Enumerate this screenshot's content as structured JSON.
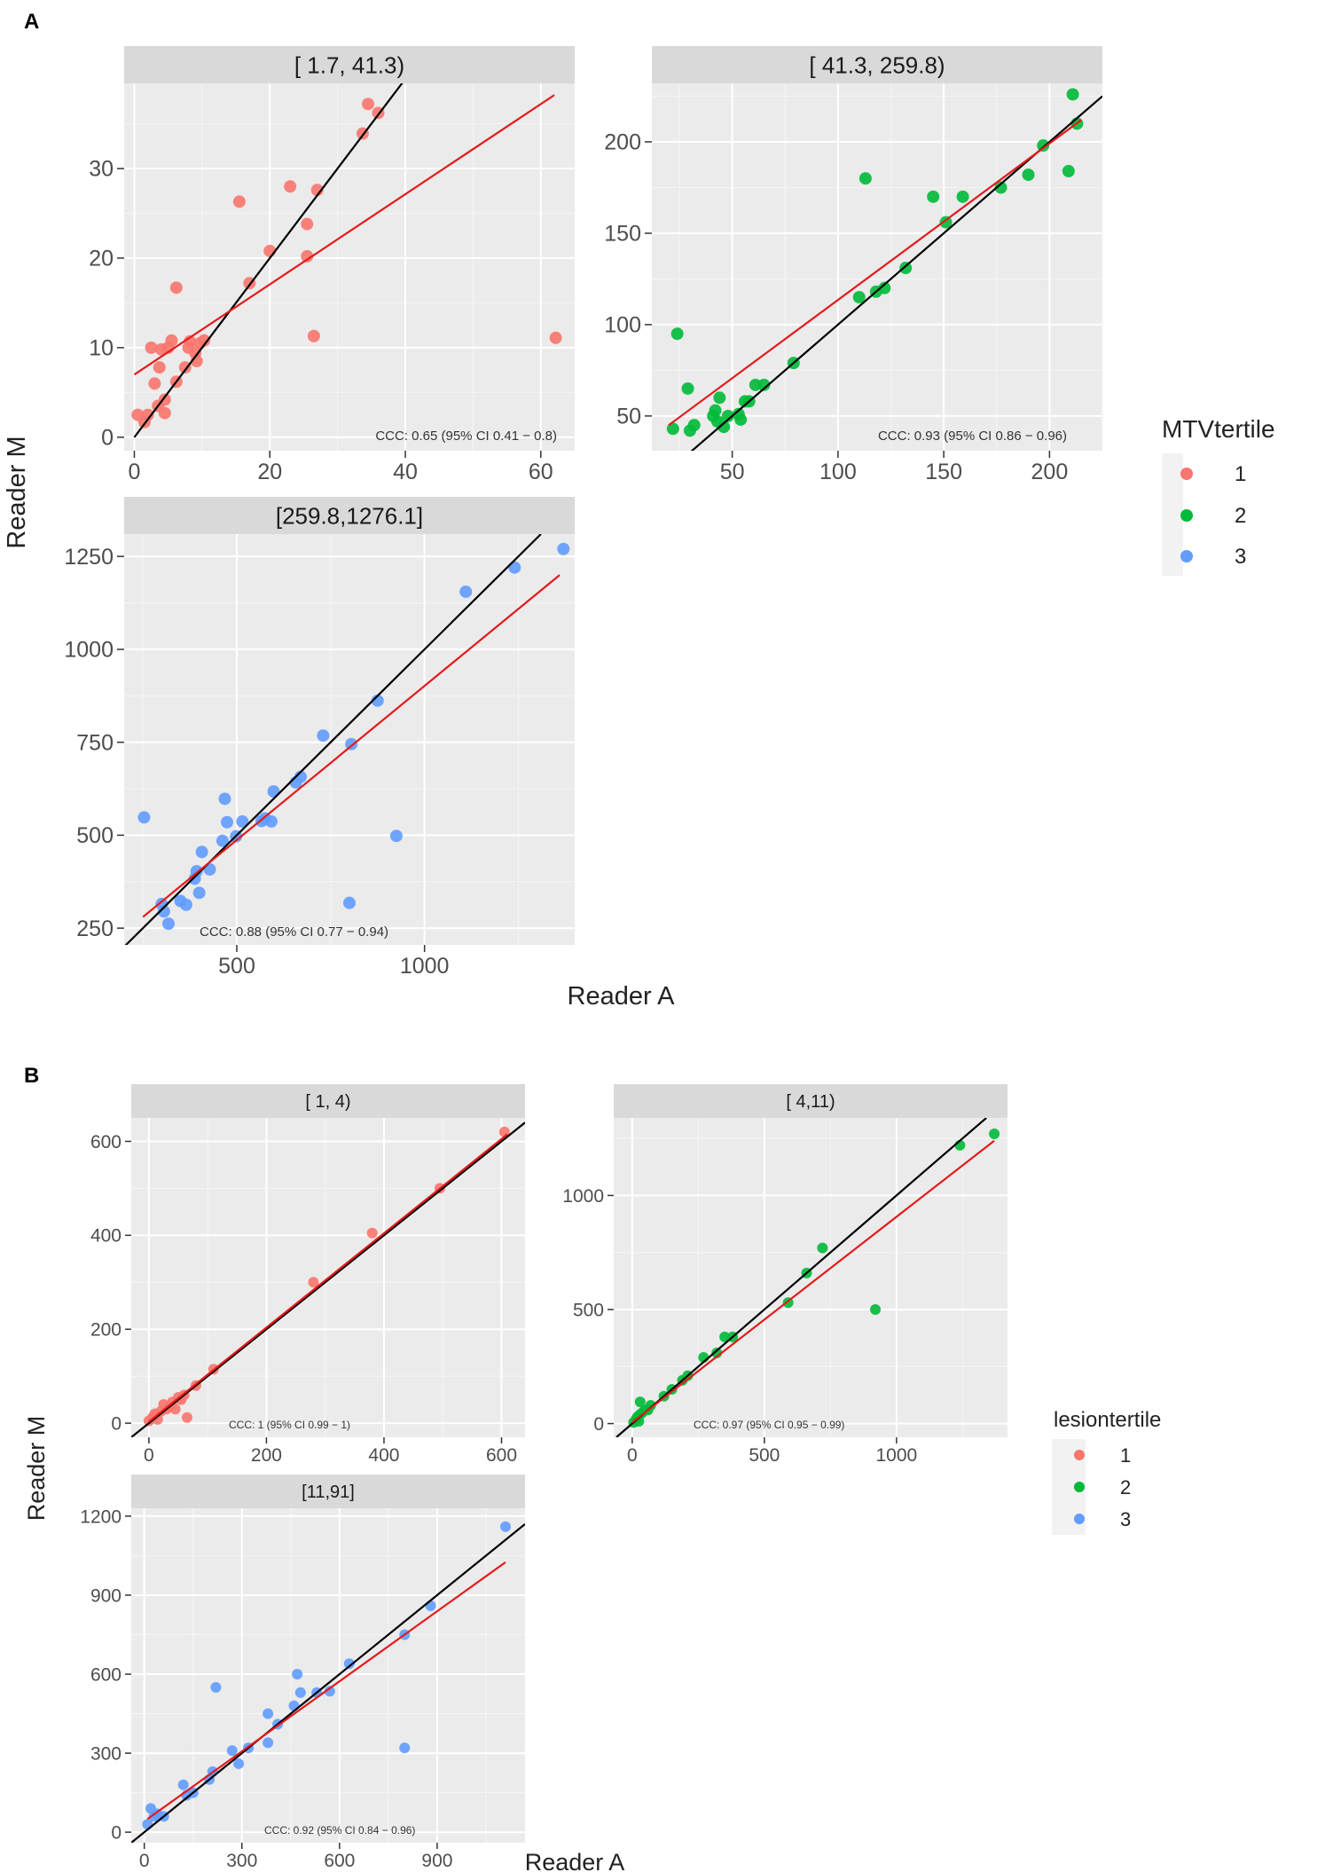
{
  "figures": [
    {
      "id": "A",
      "label": "A",
      "xlabel": "Reader A",
      "ylabel": "Reader M",
      "legend": {
        "title": "MTVtertile",
        "items": [
          {
            "label": "1",
            "color": "#f8766d"
          },
          {
            "label": "2",
            "color": "#00ba38"
          },
          {
            "label": "3",
            "color": "#619cff"
          }
        ]
      }
    },
    {
      "id": "B",
      "label": "B",
      "xlabel": "Reader A",
      "ylabel": "Reader M",
      "legend": {
        "title": "lesiontertile",
        "items": [
          {
            "label": "1",
            "color": "#f8766d"
          },
          {
            "label": "2",
            "color": "#00ba38"
          },
          {
            "label": "3",
            "color": "#619cff"
          }
        ]
      }
    }
  ],
  "chart_data": [
    {
      "type": "scatter",
      "figure": "A",
      "title": "[  1.7,  41.3)",
      "xlabel": "Reader A",
      "ylabel": "Reader M",
      "xlim": [
        -1.5,
        65
      ],
      "ylim": [
        -1.5,
        39.5
      ],
      "xticks": [
        "0",
        "20",
        "40",
        "60"
      ],
      "xtick_values": [
        0,
        20,
        40,
        60
      ],
      "yticks": [
        "0",
        "10",
        "20",
        "30"
      ],
      "ytick_values": [
        0,
        10,
        20,
        30
      ],
      "color": "#f8766d",
      "points": [
        [
          0.5,
          2.5
        ],
        [
          1.5,
          1.7
        ],
        [
          2,
          2.5
        ],
        [
          2.5,
          10
        ],
        [
          3,
          6
        ],
        [
          3.5,
          3.5
        ],
        [
          3.7,
          7.8
        ],
        [
          4,
          9.8
        ],
        [
          4.5,
          4.2
        ],
        [
          4.5,
          2.7
        ],
        [
          5,
          10
        ],
        [
          5.5,
          10.8
        ],
        [
          6.2,
          16.7
        ],
        [
          6.2,
          6.2
        ],
        [
          7.5,
          7.8
        ],
        [
          8,
          10
        ],
        [
          8.2,
          10.7
        ],
        [
          9,
          9.4
        ],
        [
          9.2,
          8.5
        ],
        [
          9.7,
          10.5
        ],
        [
          10.3,
          10.8
        ],
        [
          15.5,
          26.3
        ],
        [
          17,
          17.2
        ],
        [
          20,
          20.8
        ],
        [
          23,
          28
        ],
        [
          25.5,
          23.8
        ],
        [
          25.5,
          20.2
        ],
        [
          26.5,
          11.3
        ],
        [
          27,
          27.6
        ],
        [
          33.7,
          33.9
        ],
        [
          34.5,
          37.2
        ],
        [
          36,
          36.2
        ],
        [
          62.2,
          11.1
        ]
      ],
      "lines": [
        {
          "name": "identity",
          "color": "#000000",
          "x1": 0,
          "y1": 0,
          "x2": 40,
          "y2": 40
        },
        {
          "name": "fit",
          "color": "#e41a1c",
          "x1": 0,
          "y1": 7,
          "x2": 62,
          "y2": 38.2
        }
      ],
      "annotation": "CCC: 0.65 (95% CI 0.41 − 0.8)"
    },
    {
      "type": "scatter",
      "figure": "A",
      "title": "[ 41.3, 259.8)",
      "xlabel": "Reader A",
      "ylabel": "Reader M",
      "xlim": [
        12,
        225
      ],
      "ylim": [
        31,
        232
      ],
      "xticks": [
        "50",
        "100",
        "150",
        "200"
      ],
      "xtick_values": [
        50,
        100,
        150,
        200
      ],
      "yticks": [
        "50",
        "100",
        "150",
        "200"
      ],
      "ytick_values": [
        50,
        100,
        150,
        200
      ],
      "color": "#00ba38",
      "points": [
        [
          22,
          43
        ],
        [
          24,
          95
        ],
        [
          29,
          65
        ],
        [
          30,
          42
        ],
        [
          32,
          45
        ],
        [
          41,
          50
        ],
        [
          42,
          53
        ],
        [
          43,
          47
        ],
        [
          44,
          60
        ],
        [
          46,
          44
        ],
        [
          48,
          50
        ],
        [
          53,
          51
        ],
        [
          54,
          48
        ],
        [
          56,
          58
        ],
        [
          58,
          58
        ],
        [
          61,
          67
        ],
        [
          65,
          67
        ],
        [
          79,
          79
        ],
        [
          110,
          115
        ],
        [
          113,
          180
        ],
        [
          118,
          118
        ],
        [
          122,
          120
        ],
        [
          132,
          131
        ],
        [
          145,
          170
        ],
        [
          151,
          156
        ],
        [
          159,
          170
        ],
        [
          177,
          175
        ],
        [
          190,
          182
        ],
        [
          197,
          198
        ],
        [
          209,
          184
        ],
        [
          211,
          226
        ],
        [
          213,
          210
        ]
      ],
      "lines": [
        {
          "name": "identity",
          "color": "#000000",
          "x1": 12,
          "y1": 12,
          "x2": 225,
          "y2": 225
        },
        {
          "name": "fit",
          "color": "#e41a1c",
          "x1": 20,
          "y1": 45,
          "x2": 215,
          "y2": 212
        }
      ],
      "annotation": "CCC: 0.93 (95% CI 0.86 − 0.96)"
    },
    {
      "type": "scatter",
      "figure": "A",
      "title": "[259.8,1276.1]",
      "xlabel": "Reader A",
      "ylabel": "Reader M",
      "xlim": [
        200,
        1400
      ],
      "ylim": [
        205,
        1310
      ],
      "xticks": [
        "500",
        "1000"
      ],
      "xtick_values": [
        500,
        1000
      ],
      "yticks": [
        "250",
        "500",
        "750",
        "1000",
        "1250"
      ],
      "ytick_values": [
        250,
        500,
        750,
        1000,
        1250
      ],
      "color": "#619cff",
      "points": [
        [
          253,
          548
        ],
        [
          300,
          315
        ],
        [
          306,
          295
        ],
        [
          318,
          262
        ],
        [
          350,
          323
        ],
        [
          365,
          313
        ],
        [
          388,
          383
        ],
        [
          393,
          403
        ],
        [
          400,
          345
        ],
        [
          407,
          455
        ],
        [
          428,
          408
        ],
        [
          462,
          485
        ],
        [
          468,
          598
        ],
        [
          474,
          535
        ],
        [
          498,
          497
        ],
        [
          515,
          537
        ],
        [
          566,
          538
        ],
        [
          575,
          545
        ],
        [
          592,
          537
        ],
        [
          598,
          618
        ],
        [
          657,
          642
        ],
        [
          670,
          657
        ],
        [
          730,
          768
        ],
        [
          800,
          318
        ],
        [
          805,
          745
        ],
        [
          875,
          862
        ],
        [
          925,
          498
        ],
        [
          1110,
          1155
        ],
        [
          1240,
          1220
        ],
        [
          1370,
          1270
        ]
      ],
      "lines": [
        {
          "name": "identity",
          "color": "#000000",
          "x1": 200,
          "y1": 200,
          "x2": 1310,
          "y2": 1310
        },
        {
          "name": "fit",
          "color": "#e41a1c",
          "x1": 250,
          "y1": 280,
          "x2": 1360,
          "y2": 1200
        }
      ],
      "annotation": "CCC: 0.88 (95% CI 0.77 − 0.94)"
    },
    {
      "type": "scatter",
      "figure": "B",
      "title": "[ 1, 4)",
      "xlabel": "Reader A",
      "ylabel": "Reader M",
      "xlim": [
        -30,
        640
      ],
      "ylim": [
        -30,
        650
      ],
      "xticks": [
        "0",
        "200",
        "400",
        "600"
      ],
      "xtick_values": [
        0,
        200,
        400,
        600
      ],
      "yticks": [
        "0",
        "200",
        "400",
        "600"
      ],
      "ytick_values": [
        0,
        200,
        400,
        600
      ],
      "color": "#f8766d",
      "points": [
        [
          0,
          5
        ],
        [
          5,
          10
        ],
        [
          8,
          15
        ],
        [
          10,
          20
        ],
        [
          15,
          8
        ],
        [
          20,
          25
        ],
        [
          25,
          40
        ],
        [
          30,
          30
        ],
        [
          35,
          35
        ],
        [
          40,
          45
        ],
        [
          45,
          30
        ],
        [
          50,
          55
        ],
        [
          55,
          50
        ],
        [
          60,
          60
        ],
        [
          65,
          12
        ],
        [
          80,
          80
        ],
        [
          110,
          115
        ],
        [
          280,
          300
        ],
        [
          380,
          405
        ],
        [
          495,
          500
        ],
        [
          605,
          620
        ]
      ],
      "lines": [
        {
          "name": "identity",
          "color": "#000000",
          "x1": -30,
          "y1": -30,
          "x2": 640,
          "y2": 640
        },
        {
          "name": "fit",
          "color": "#e41a1c",
          "x1": 0,
          "y1": 3,
          "x2": 610,
          "y2": 615
        }
      ],
      "annotation": "CCC: 1 (95% CI 0.99 − 1)"
    },
    {
      "type": "scatter",
      "figure": "B",
      "title": "[ 4,11)",
      "xlabel": "Reader A",
      "ylabel": "Reader M",
      "xlim": [
        -70,
        1420
      ],
      "ylim": [
        -60,
        1340
      ],
      "xticks": [
        "0",
        "500",
        "1000"
      ],
      "xtick_values": [
        0,
        500,
        1000
      ],
      "yticks": [
        "0",
        "500",
        "1000"
      ],
      "ytick_values": [
        0,
        500,
        1000
      ],
      "color": "#00ba38",
      "points": [
        [
          5,
          5
        ],
        [
          15,
          20
        ],
        [
          20,
          30
        ],
        [
          25,
          10
        ],
        [
          30,
          40
        ],
        [
          30,
          95
        ],
        [
          40,
          50
        ],
        [
          50,
          60
        ],
        [
          60,
          60
        ],
        [
          70,
          80
        ],
        [
          120,
          120
        ],
        [
          150,
          150
        ],
        [
          190,
          190
        ],
        [
          210,
          210
        ],
        [
          270,
          290
        ],
        [
          320,
          310
        ],
        [
          350,
          380
        ],
        [
          380,
          380
        ],
        [
          590,
          530
        ],
        [
          660,
          660
        ],
        [
          720,
          770
        ],
        [
          920,
          500
        ],
        [
          1240,
          1220
        ],
        [
          1370,
          1270
        ]
      ],
      "lines": [
        {
          "name": "identity",
          "color": "#000000",
          "x1": -60,
          "y1": -60,
          "x2": 1340,
          "y2": 1340
        },
        {
          "name": "fit",
          "color": "#e41a1c",
          "x1": 0,
          "y1": 5,
          "x2": 1370,
          "y2": 1240
        }
      ],
      "annotation": "CCC: 0.97 (95% CI 0.95 − 0.99)"
    },
    {
      "type": "scatter",
      "figure": "B",
      "title": "[11,91]",
      "xlabel": "Reader A",
      "ylabel": "Reader M",
      "xlim": [
        -40,
        1170
      ],
      "ylim": [
        -40,
        1230
      ],
      "xticks": [
        "0",
        "300",
        "600",
        "900"
      ],
      "xtick_values": [
        0,
        300,
        600,
        900
      ],
      "yticks": [
        "0",
        "300",
        "600",
        "900",
        "1200"
      ],
      "ytick_values": [
        0,
        300,
        600,
        900,
        1200
      ],
      "color": "#619cff",
      "points": [
        [
          10,
          30
        ],
        [
          20,
          90
        ],
        [
          30,
          60
        ],
        [
          40,
          70
        ],
        [
          60,
          60
        ],
        [
          120,
          180
        ],
        [
          130,
          140
        ],
        [
          150,
          150
        ],
        [
          200,
          200
        ],
        [
          210,
          230
        ],
        [
          220,
          550
        ],
        [
          270,
          310
        ],
        [
          290,
          260
        ],
        [
          320,
          320
        ],
        [
          380,
          340
        ],
        [
          380,
          450
        ],
        [
          410,
          410
        ],
        [
          460,
          480
        ],
        [
          470,
          600
        ],
        [
          480,
          530
        ],
        [
          530,
          530
        ],
        [
          570,
          535
        ],
        [
          630,
          640
        ],
        [
          800,
          320
        ],
        [
          800,
          750
        ],
        [
          880,
          860
        ],
        [
          1110,
          1160
        ]
      ],
      "lines": [
        {
          "name": "identity",
          "color": "#000000",
          "x1": -40,
          "y1": -40,
          "x2": 1170,
          "y2": 1170
        },
        {
          "name": "fit",
          "color": "#e41a1c",
          "x1": 10,
          "y1": 50,
          "x2": 1110,
          "y2": 1025
        }
      ],
      "annotation": "CCC: 0.92 (95% CI 0.84 − 0.96)"
    }
  ]
}
